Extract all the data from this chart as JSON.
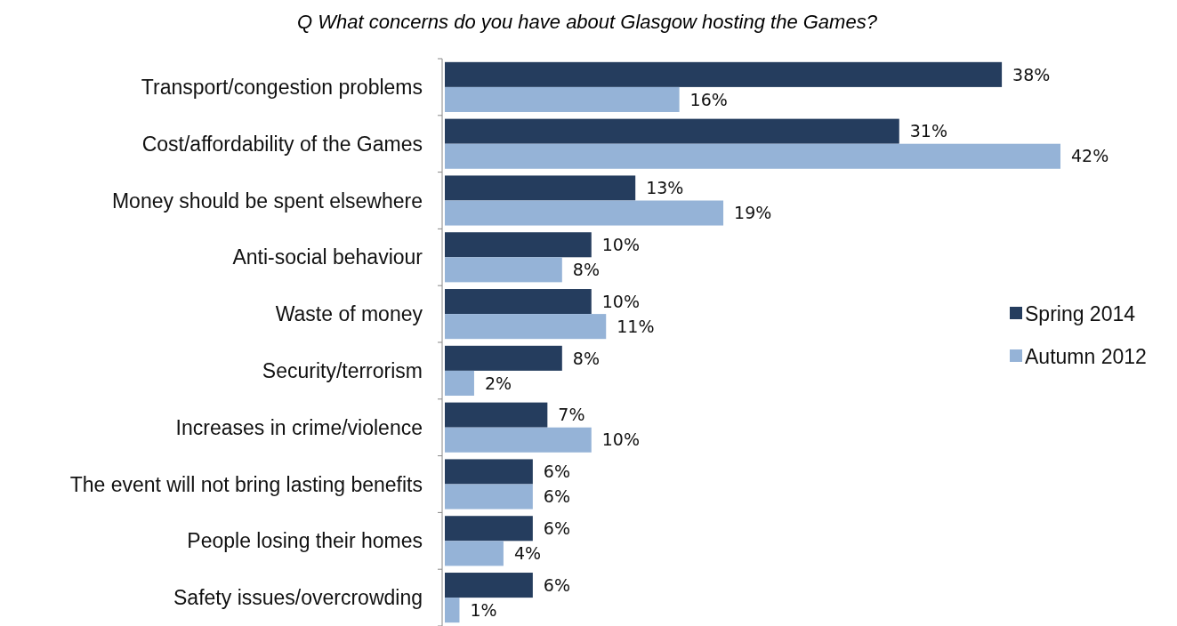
{
  "chart_data": {
    "type": "bar",
    "orientation": "horizontal",
    "title": "Q What concerns do you have about Glasgow hosting the Games?",
    "categories": [
      "Transport/congestion problems",
      "Cost/affordability of the Games",
      "Money should be spent elsewhere",
      "Anti-social behaviour",
      "Waste of money",
      "Security/terrorism",
      "Increases in crime/violence",
      "The event will not bring lasting benefits",
      "People losing their homes",
      "Safety issues/overcrowding"
    ],
    "series": [
      {
        "name": "Spring 2014",
        "color": "#253d5e",
        "values": [
          38,
          31,
          13,
          10,
          10,
          8,
          7,
          6,
          6,
          6
        ],
        "value_labels": [
          "38%",
          "31%",
          "13%",
          "10%",
          "10%",
          "8%",
          "7%",
          "6%",
          "6%",
          "6%"
        ]
      },
      {
        "name": "Autumn 2012",
        "color": "#95b3d7",
        "values": [
          16,
          42,
          19,
          8,
          11,
          2,
          10,
          6,
          4,
          1
        ],
        "value_labels": [
          "16%",
          "42%",
          "19%",
          "8%",
          "11%",
          "2%",
          "10%",
          "6%",
          "4%",
          "1%"
        ]
      }
    ],
    "legend": "right"
  }
}
